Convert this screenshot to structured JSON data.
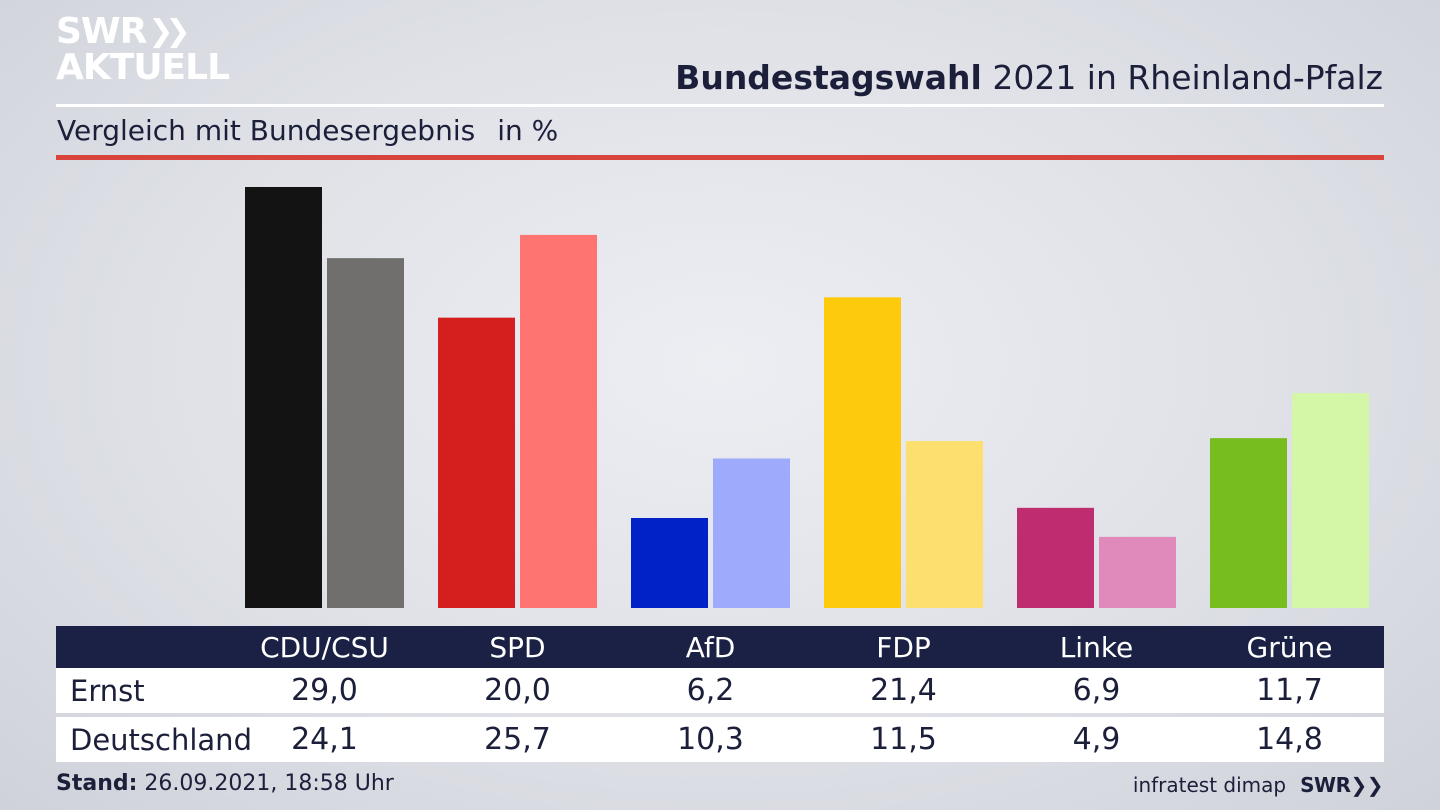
{
  "branding": {
    "logo_line1": "SWR",
    "logo_line2": "AKTUELL",
    "footer_logo": "SWR",
    "source": "infratest dimap"
  },
  "header": {
    "title_bold": "Bundestagswahl",
    "title_rest": "2021 in Rheinland-Pfalz",
    "subtitle": "Vergleich mit Bundesergebnis",
    "unit": "in %"
  },
  "footer": {
    "stand_label": "Stand:",
    "stand_value": "26.09.2021, 18:58 Uhr"
  },
  "chart_data": {
    "type": "bar",
    "title": "Bundestagswahl 2021 in Rheinland-Pfalz",
    "subtitle": "Vergleich mit Bundesergebnis in %",
    "categories": [
      "CDU/CSU",
      "SPD",
      "AfD",
      "FDP",
      "Linke",
      "Grüne"
    ],
    "series": [
      {
        "name": "Ernst",
        "values": [
          "29,0",
          "20,0",
          "6,2",
          "21,4",
          "6,9",
          "11,7"
        ],
        "numeric": [
          29.0,
          20.0,
          6.2,
          21.4,
          6.9,
          11.7
        ],
        "colors": [
          "#131313",
          "#d51f1f",
          "#0022c6",
          "#fdcb0c",
          "#bd2d70",
          "#78bd1e"
        ]
      },
      {
        "name": "Deutschland",
        "values": [
          "24,1",
          "25,7",
          "10,3",
          "11,5",
          "4,9",
          "14,8"
        ],
        "numeric": [
          24.1,
          25.7,
          10.3,
          11.5,
          4.9,
          14.8
        ],
        "colors": [
          "#706f6d",
          "#fe7470",
          "#9eabfd",
          "#fcdf6e",
          "#e089bb",
          "#d3f7a7"
        ]
      }
    ],
    "ylim": [
      0,
      29
    ],
    "grid": false,
    "legend": "table below chart"
  }
}
